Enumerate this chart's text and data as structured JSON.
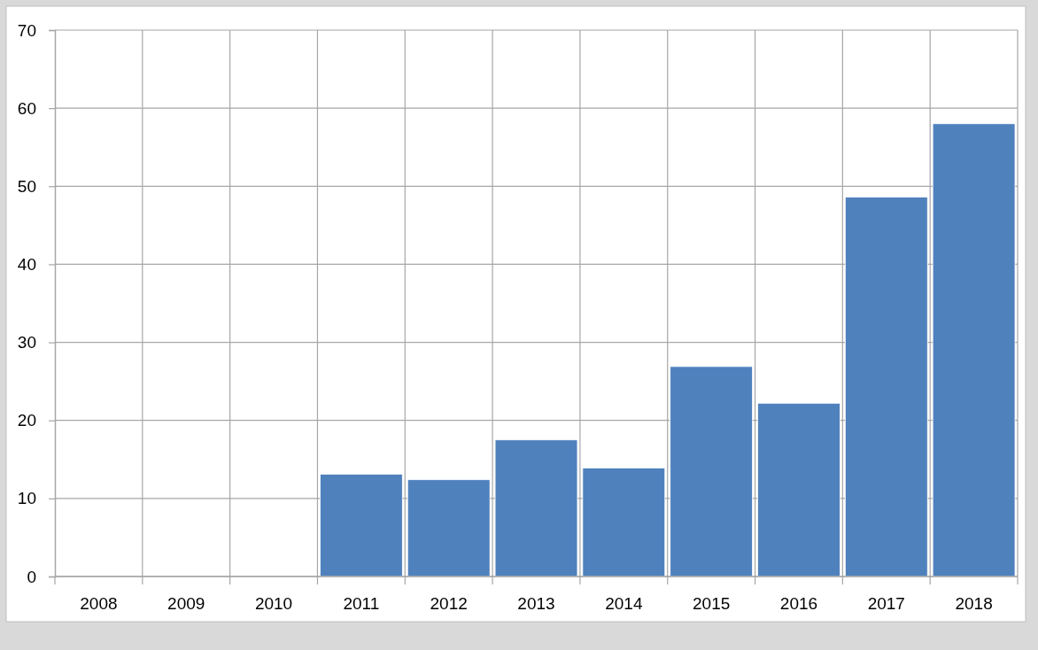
{
  "chart_data": {
    "type": "bar",
    "categories": [
      "2008",
      "2009",
      "2010",
      "2011",
      "2012",
      "2013",
      "2014",
      "2015",
      "2016",
      "2017",
      "2018"
    ],
    "values": [
      null,
      null,
      null,
      13.1,
      12.4,
      17.5,
      13.9,
      26.9,
      22.2,
      48.6,
      58.0
    ],
    "color": "#4f81bd",
    "ylim": [
      0,
      70
    ],
    "yticks": [
      0,
      10,
      20,
      30,
      40,
      50,
      60,
      70
    ],
    "grid": true
  }
}
